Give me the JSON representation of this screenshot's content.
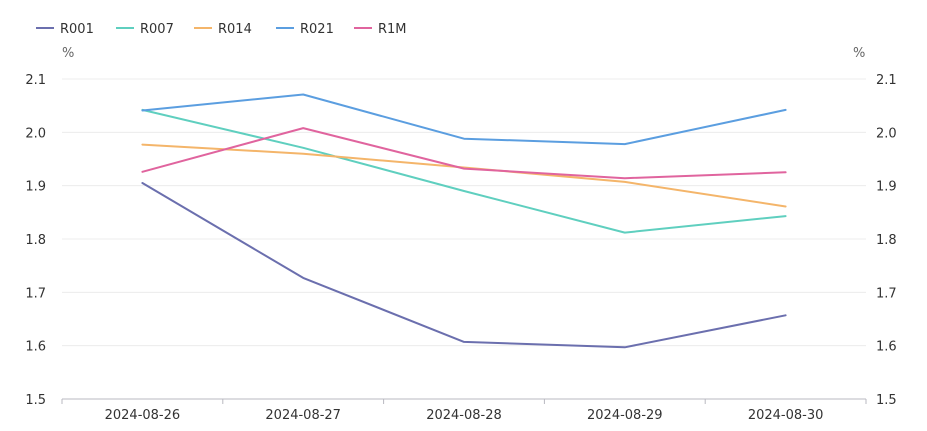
{
  "chart_data": {
    "type": "line",
    "title": "",
    "xlabel": "",
    "ylabel": "%",
    "y2label": "%",
    "categories": [
      "2024-08-26",
      "2024-08-27",
      "2024-08-28",
      "2024-08-29",
      "2024-08-30"
    ],
    "ylim": [
      1.5,
      2.1
    ],
    "yticks": [
      "1.5",
      "1.6",
      "1.7",
      "1.8",
      "1.9",
      "2.0",
      "2.1"
    ],
    "grid": true,
    "legend_position": "top-left",
    "series": [
      {
        "name": "R001",
        "color": "#6B6FAE",
        "values": [
          1.905,
          1.727,
          1.607,
          1.597,
          1.657
        ]
      },
      {
        "name": "R007",
        "color": "#5FCFBF",
        "values": [
          2.042,
          1.971,
          1.89,
          1.812,
          1.843
        ]
      },
      {
        "name": "R014",
        "color": "#F4B56A",
        "values": [
          1.977,
          1.96,
          1.934,
          1.907,
          1.861
        ]
      },
      {
        "name": "R021",
        "color": "#5B9EE0",
        "values": [
          2.041,
          2.071,
          1.988,
          1.978,
          2.042
        ]
      },
      {
        "name": "R1M",
        "color": "#E0649E",
        "values": [
          1.926,
          2.008,
          1.932,
          1.914,
          1.925
        ]
      }
    ]
  }
}
